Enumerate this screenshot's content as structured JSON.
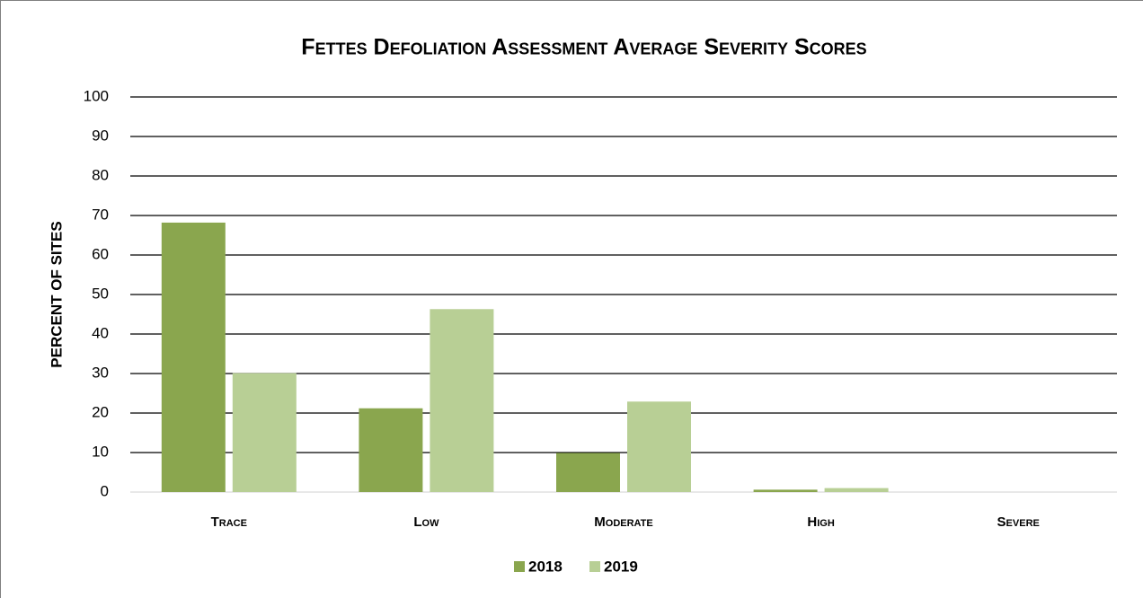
{
  "chart_data": {
    "type": "bar",
    "title": "Fettes Defoliation Assessment Average Severity Scores",
    "y_label": "PERCENT OF SITES",
    "categories": [
      "Trace",
      "Low",
      "Moderate",
      "High",
      "Severe"
    ],
    "series": [
      {
        "name": "2018",
        "color": "#8aa64e",
        "values": [
          68.2,
          21.2,
          9.9,
          0.6,
          0
        ]
      },
      {
        "name": "2019",
        "color": "#b8cf95",
        "values": [
          30.1,
          46.3,
          22.9,
          1.0,
          0
        ]
      }
    ],
    "ylim": [
      0,
      100
    ],
    "yticks": [
      0,
      10,
      20,
      30,
      40,
      50,
      60,
      70,
      80,
      90,
      100
    ],
    "grid": true,
    "legend": "bottom"
  }
}
